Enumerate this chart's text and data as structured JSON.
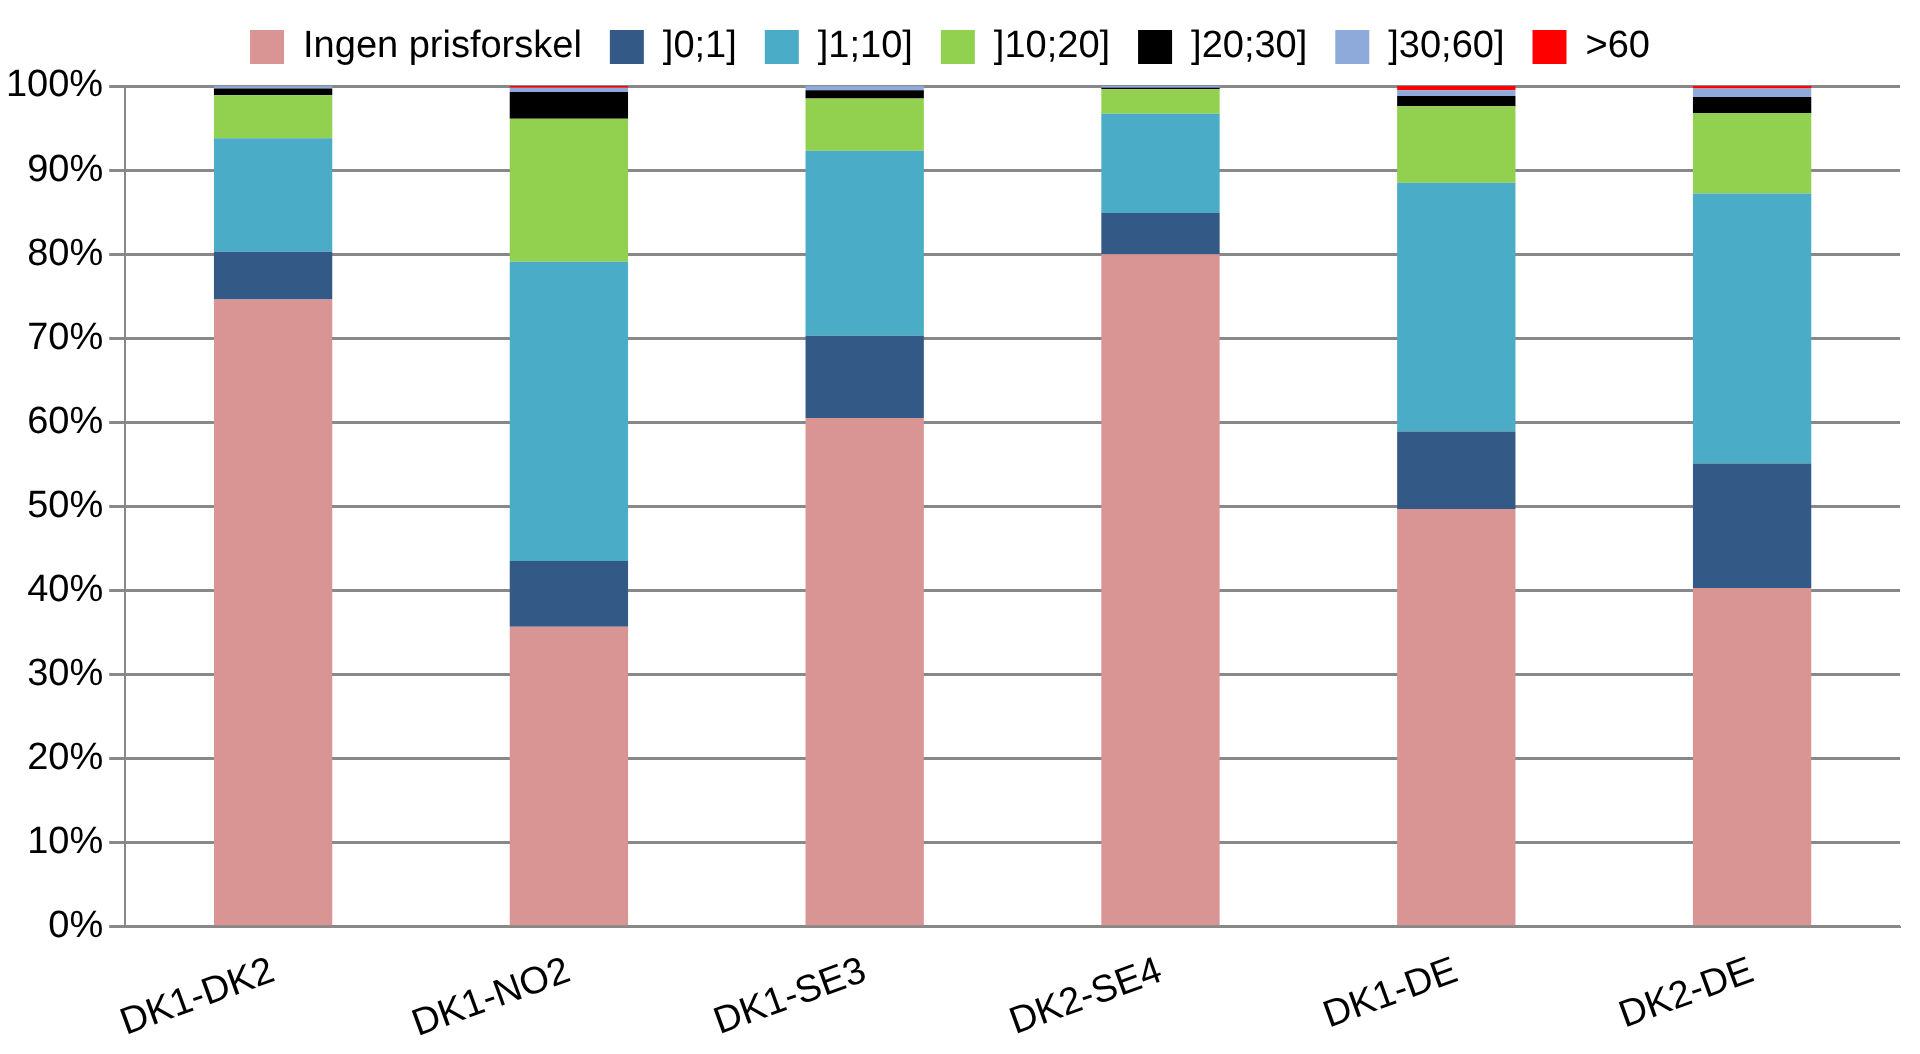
{
  "chart_data": {
    "type": "bar",
    "stacked": true,
    "categories": [
      "DK1-DK2",
      "DK1-NO2",
      "DK1-SE3",
      "DK2-SE4",
      "DK1-DE",
      "DK2-DE"
    ],
    "series": [
      {
        "name": "Ingen prisforskel",
        "color": "#d99594",
        "values": [
          74.6,
          35.7,
          60.5,
          80.0,
          49.7,
          40.3
        ]
      },
      {
        "name": "]0;1]",
        "color": "#335a87",
        "values": [
          5.7,
          7.8,
          9.8,
          4.9,
          9.2,
          14.8
        ]
      },
      {
        "name": "]1;10]",
        "color": "#4aacc6",
        "values": [
          13.5,
          35.6,
          22.0,
          11.8,
          29.6,
          32.1
        ]
      },
      {
        "name": "]10;20]",
        "color": "#92d050",
        "values": [
          5.1,
          17.0,
          6.2,
          2.9,
          9.1,
          9.6
        ]
      },
      {
        "name": "]20;30]",
        "color": "#000000",
        "values": [
          0.8,
          3.2,
          1.0,
          0.2,
          1.2,
          1.9
        ]
      },
      {
        "name": "]30;60]",
        "color": "#8eaadb",
        "values": [
          0.3,
          0.5,
          0.5,
          0.2,
          0.7,
          1.0
        ]
      },
      {
        "name": ">60",
        "color": "#ff0000",
        "values": [
          0,
          0.2,
          0,
          0,
          0.5,
          0.3
        ]
      }
    ],
    "ylim": [
      0,
      100
    ],
    "yticks": [
      {
        "value": 0,
        "label": "0%"
      },
      {
        "value": 10,
        "label": "10%"
      },
      {
        "value": 20,
        "label": "20%"
      },
      {
        "value": 30,
        "label": "30%"
      },
      {
        "value": 40,
        "label": "40%"
      },
      {
        "value": 50,
        "label": "50%"
      },
      {
        "value": 60,
        "label": "60%"
      },
      {
        "value": 70,
        "label": "70%"
      },
      {
        "value": 80,
        "label": "80%"
      },
      {
        "value": 90,
        "label": "90%"
      },
      {
        "value": 100,
        "label": "100%"
      }
    ],
    "grid": "y",
    "legend": "top"
  }
}
